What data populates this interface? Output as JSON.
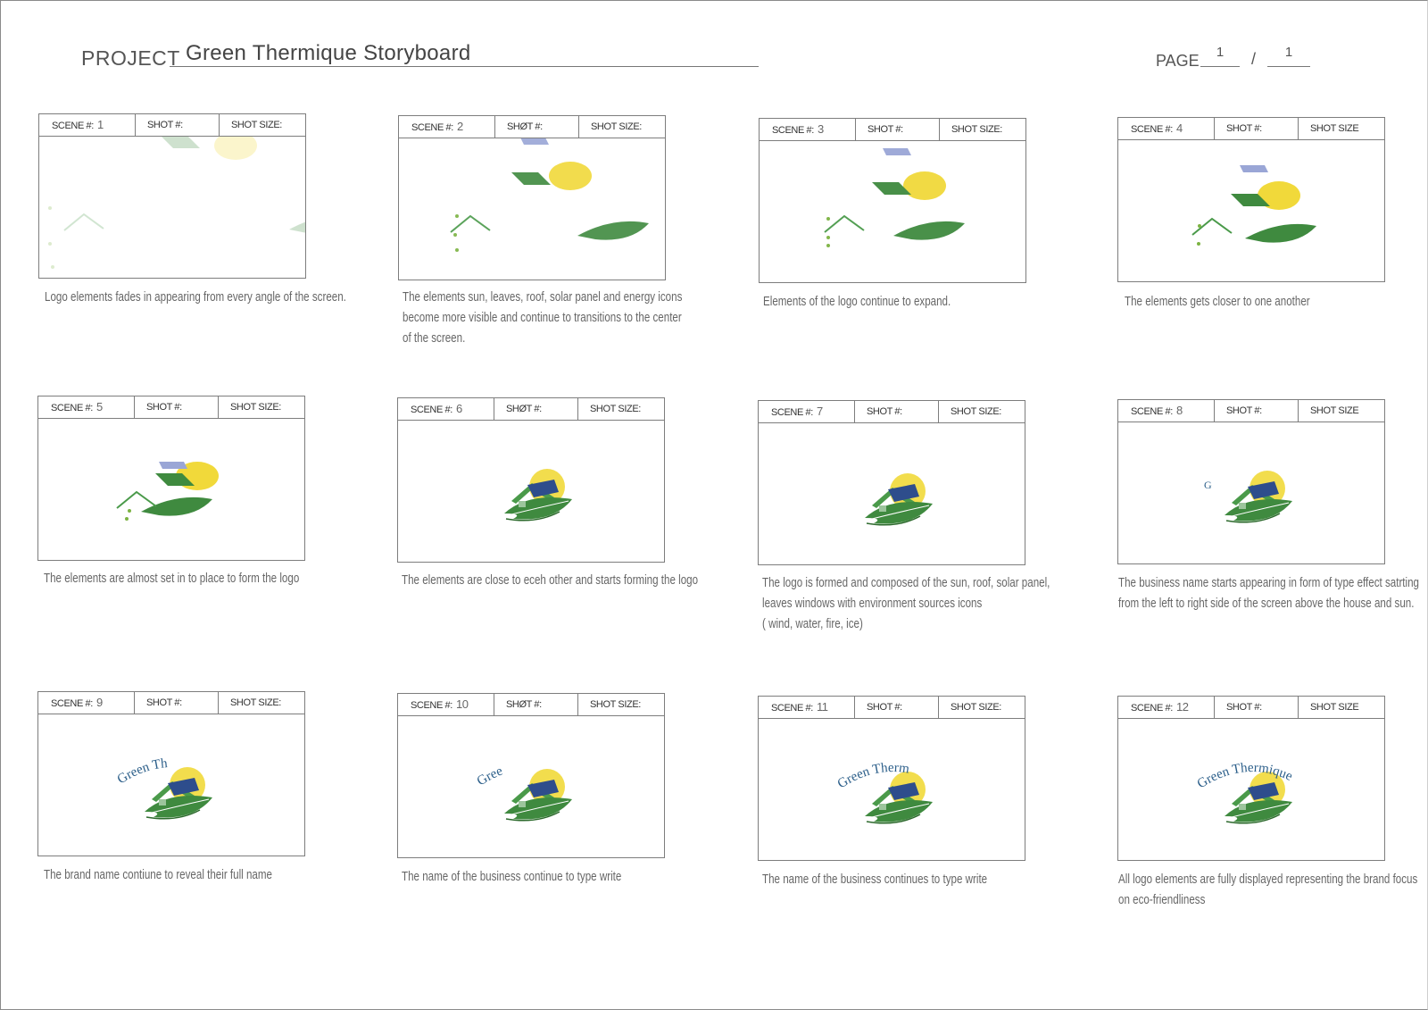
{
  "header": {
    "project_label": "PROJECT",
    "project_title": "Green Thermique Storyboard",
    "page_label": "PAGE",
    "page_current": "1",
    "page_separator": "/",
    "page_total": "1"
  },
  "brand_text": "Green Thermique",
  "colors": {
    "sun": "#f1d93a",
    "leaf": "#3f8a3f",
    "roof": "#4a9a4a",
    "panel": "#2e4d8c",
    "text_blue": "#2c5f8a"
  },
  "frames": [
    {
      "scene_label": "SCENE #:",
      "scene_number": "1",
      "shot_label": "SHOT #:",
      "size_label": "SHOT SIZE:",
      "caption": [
        "Logo elements fades in appearing from every angle of the screen."
      ]
    },
    {
      "scene_label": "SCENE #:",
      "scene_number": "2",
      "shot_label": "SHØT #:",
      "size_label": "SHOT SIZE:",
      "caption": [
        "The elements sun, leaves, roof, solar panel and energy icons",
        "become more visible and continue to transitions to the center",
        "of the screen."
      ]
    },
    {
      "scene_label": "SCENE #:",
      "scene_number": "3",
      "shot_label": "SHOT #:",
      "size_label": "SHOT SIZE:",
      "caption": [
        "Elements of the logo continue to expand."
      ]
    },
    {
      "scene_label": "SCENE #:",
      "scene_number": "4",
      "shot_label": "SHOT #:",
      "size_label": "SHOT SIZE",
      "caption": [
        "The elements gets closer to one  another"
      ]
    },
    {
      "scene_label": "SCENE #:",
      "scene_number": "5",
      "shot_label": "SHOT #:",
      "size_label": "SHOT SIZE:",
      "caption": [
        "The elements are almost set in to place to form the logo"
      ]
    },
    {
      "scene_label": "SCENE #:",
      "scene_number": "6",
      "shot_label": "SHØT #:",
      "size_label": "SHOT SIZE:",
      "caption": [
        "The elements are close to eceh other and starts forming the logo"
      ]
    },
    {
      "scene_label": "SCENE #:",
      "scene_number": "7",
      "shot_label": "SHOT #:",
      "size_label": "SHOT SIZE:",
      "caption": [
        "The logo is formed and composed of the sun, roof, solar panel,",
        "leaves windows with environment sources  icons",
        "( wind, water, fire, ice)"
      ]
    },
    {
      "scene_label": "SCENE #:",
      "scene_number": "8",
      "shot_label": "SHOT #:",
      "size_label": "SHOT SIZE",
      "caption": [
        "The business name starts appearing in form of type effect  satrting",
        " from the left to right side of the screen above the house and sun."
      ]
    },
    {
      "scene_label": "SCENE #:",
      "scene_number": "9",
      "shot_label": "SHOT #:",
      "size_label": "SHOT SIZE:",
      "brand_partial": "Green Th",
      "caption": [
        "The brand name contiune to reveal their full name"
      ]
    },
    {
      "scene_label": "SCENE #:",
      "scene_number": "10",
      "shot_label": "SHØT #:",
      "size_label": "SHOT SIZE:",
      "brand_partial": "Gree",
      "caption": [
        "The name of the business continue to type write"
      ]
    },
    {
      "scene_label": "SCENE #:",
      "scene_number": "11",
      "shot_label": "SHOT #:",
      "size_label": "SHOT SIZE:",
      "brand_partial": "Green Therm",
      "caption": [
        "The name of the business continues to type write"
      ]
    },
    {
      "scene_label": "SCENE #:",
      "scene_number": "12",
      "shot_label": "SHOT #:",
      "size_label": "SHOT SIZE",
      "brand_partial": "Green Thermique",
      "caption": [
        "All logo elements are fully displayed representing the brand  focus",
        "on eco-friendliness"
      ]
    }
  ]
}
